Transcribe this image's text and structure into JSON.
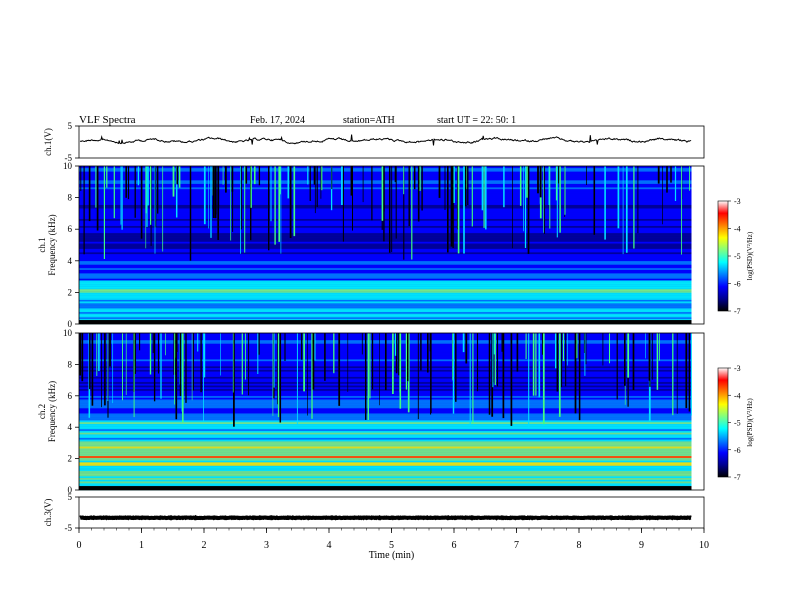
{
  "header": {
    "title": "VLF  Spectra",
    "date": "Feb. 17, 2024",
    "station": "station=ATH",
    "start": "start  UT  =    22: 50: 1"
  },
  "chart_data": [
    {
      "type": "line",
      "name": "ch1-waveform",
      "ylabel": "ch.1(V)",
      "ylim": [
        -5,
        5
      ],
      "yticks": [
        "5",
        "-5"
      ],
      "xlim": [
        0,
        10
      ],
      "level_approx": 0.5
    },
    {
      "type": "heatmap",
      "name": "ch1-spectrogram",
      "ylabel_top": "ch.1",
      "ylabel": "Frequency  (kHz)",
      "ylim": [
        0,
        10
      ],
      "yticks": [
        "0",
        "2",
        "4",
        "6",
        "8",
        "10"
      ],
      "xlim": [
        0,
        10
      ],
      "data_end_min": 9.8,
      "colorbar": {
        "label": "log(PSD)(V²/Hz)",
        "range": [
          -7,
          -3
        ],
        "ticks": [
          "-3",
          "-4",
          "-5",
          "-6",
          "-7"
        ]
      }
    },
    {
      "type": "heatmap",
      "name": "ch2-spectrogram",
      "ylabel_top": "ch.2",
      "ylabel": "Frequency  (kHz)",
      "ylim": [
        0,
        10
      ],
      "yticks": [
        "0",
        "2",
        "4",
        "6",
        "8",
        "10"
      ],
      "xlim": [
        0,
        10
      ],
      "data_end_min": 9.8,
      "colorbar": {
        "label": "log(PSD)(V²/Hz)",
        "range": [
          -7,
          -3
        ],
        "ticks": [
          "-3",
          "-4",
          "-5",
          "-6",
          "-7"
        ]
      }
    },
    {
      "type": "line",
      "name": "ch3-waveform",
      "ylabel": "ch.3(V)",
      "ylim": [
        -5,
        5
      ],
      "yticks": [
        "5",
        "-5"
      ],
      "xlim": [
        0,
        10
      ],
      "level_approx": -1.7
    }
  ],
  "xaxis": {
    "label": "Time  (min)",
    "ticks": [
      "0",
      "1",
      "2",
      "3",
      "4",
      "5",
      "6",
      "7",
      "8",
      "9",
      "10"
    ]
  },
  "colors": {
    "background": "#ffffff",
    "colormap": [
      "#000000",
      "#00008f",
      "#0000ff",
      "#0080ff",
      "#00ffff",
      "#80ff80",
      "#ffff00",
      "#ff8000",
      "#ff0000",
      "#ffffff"
    ]
  }
}
